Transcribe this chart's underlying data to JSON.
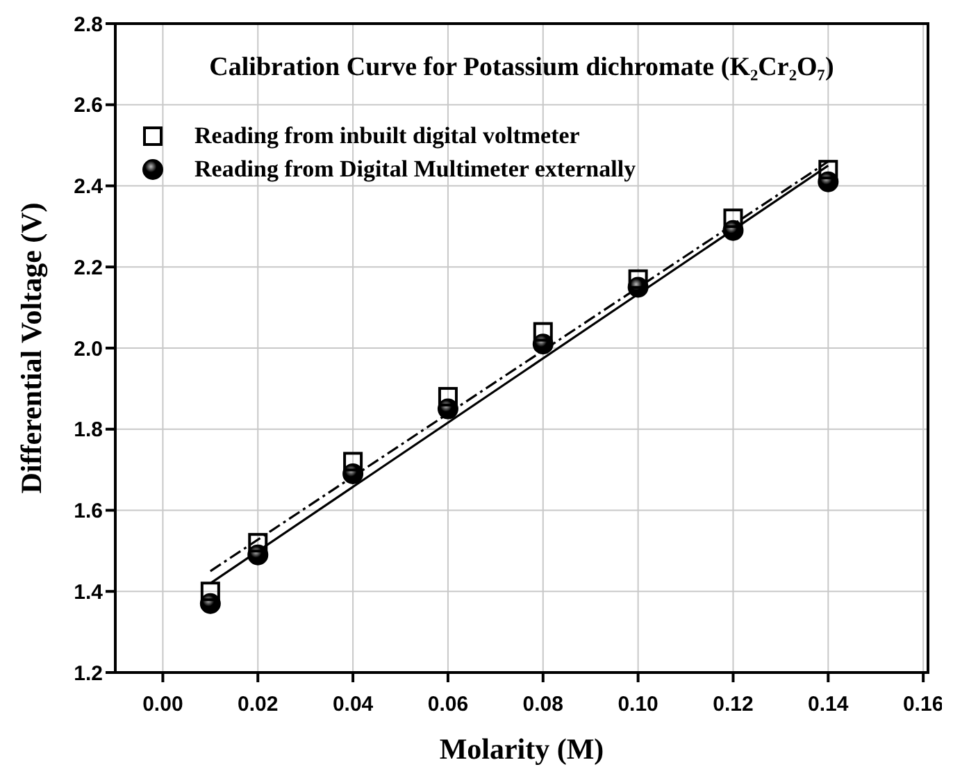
{
  "chart_data": {
    "type": "scatter",
    "title": "Calibration Curve for Potassium dichromate (K₂Cr₂O₇)",
    "xlabel": "Molarity (M)",
    "ylabel": "Differential Voltage (V)",
    "xlim": [
      -0.01,
      0.161
    ],
    "xticks": [
      {
        "value": 0,
        "label": "0.00"
      },
      {
        "value": 0.02,
        "label": "0.02"
      },
      {
        "value": 0.04,
        "label": "0.04"
      },
      {
        "value": 0.06,
        "label": "0.06"
      },
      {
        "value": 0.08,
        "label": "0.08"
      },
      {
        "value": 0.1,
        "label": "0.10"
      },
      {
        "value": 0.12,
        "label": "0.12"
      },
      {
        "value": 0.14,
        "label": "0.14"
      },
      {
        "value": 0.16,
        "label": "0.16"
      }
    ],
    "ylim": [
      1.2,
      2.8
    ],
    "yticks": [
      {
        "value": 1.2,
        "label": "1.2"
      },
      {
        "value": 1.4,
        "label": "1.4"
      },
      {
        "value": 1.6,
        "label": "1.6"
      },
      {
        "value": 1.8,
        "label": "1.8"
      },
      {
        "value": 2,
        "label": "2.0"
      },
      {
        "value": 2.2,
        "label": "2.2"
      },
      {
        "value": 2.4,
        "label": "2.4"
      },
      {
        "value": 2.6,
        "label": "2.6"
      },
      {
        "value": 2.8,
        "label": "2.8"
      }
    ],
    "grid": true,
    "legend": "top left",
    "series": [
      {
        "name": "Reading from inbuilt digital voltmeter",
        "marker": "square",
        "color": "#000000",
        "x": [
          0.01,
          0.02,
          0.04,
          0.06,
          0.08,
          0.1,
          0.12,
          0.14
        ],
        "values": [
          1.4,
          1.52,
          1.72,
          1.88,
          2.04,
          2.17,
          2.32,
          2.44
        ]
      },
      {
        "name": "Reading from Digital Multimeter externally",
        "marker": "circle",
        "color": "#000000",
        "x": [
          0.01,
          0.02,
          0.04,
          0.06,
          0.08,
          0.1,
          0.12,
          0.14
        ],
        "values": [
          1.37,
          1.49,
          1.69,
          1.85,
          2.01,
          2.15,
          2.29,
          2.41
        ]
      },
      {
        "type": "line",
        "line_style": "dashed",
        "color": "#000000",
        "x": [
          0.01,
          0.14
        ],
        "values": [
          1.45,
          2.46
        ]
      },
      {
        "type": "line",
        "line_style": "solid",
        "color": "#000000",
        "x": [
          0.01,
          0.14
        ],
        "values": [
          1.42,
          2.45
        ]
      }
    ]
  }
}
